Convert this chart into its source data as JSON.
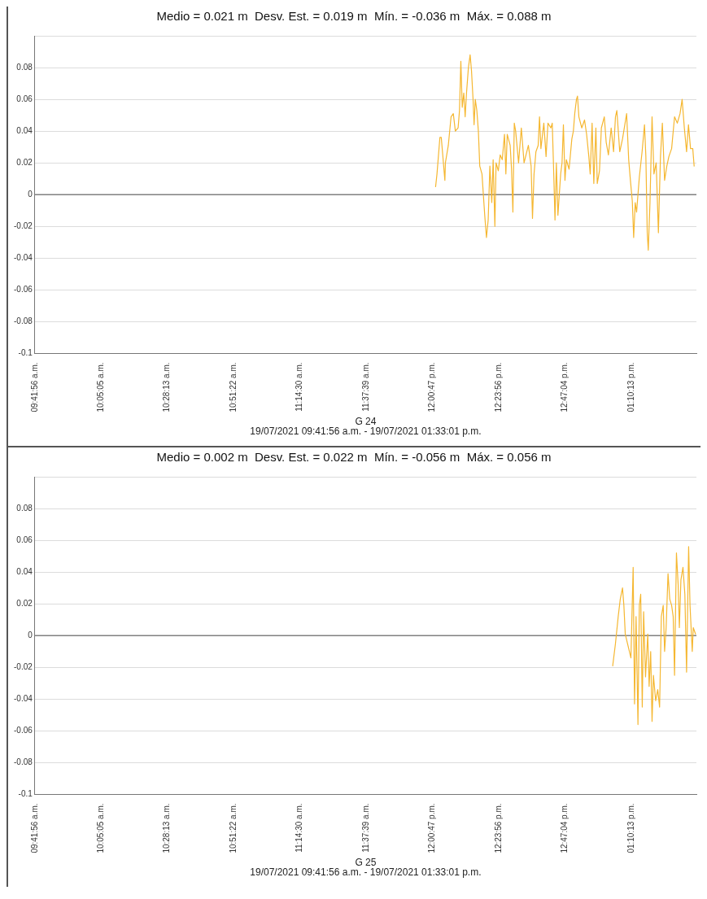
{
  "chart_data": [
    {
      "type": "line",
      "title": "Medio = 0.021 m  Desv. Est. = 0.019 m  Mín. = -0.036 m  Máx. = 0.088 m",
      "xlabel": "G 24",
      "annotations": [
        "19/07/2021 09:41:56 a.m. - 19/07/2021 01:33:01 p.m."
      ],
      "xlim": [
        9.6989,
        13.5503
      ],
      "xticks": [
        {
          "value": 9.6989,
          "label": "09:41:56 a.m."
        },
        {
          "value": 10.0847,
          "label": "10:05:05 a.m."
        },
        {
          "value": 10.4703,
          "label": "10:28:13 a.m."
        },
        {
          "value": 10.8561,
          "label": "10:51:22 a.m."
        },
        {
          "value": 11.2417,
          "label": "11:14:30 a.m."
        },
        {
          "value": 11.6275,
          "label": "11:37:39 a.m."
        },
        {
          "value": 12.0131,
          "label": "12:00:47 p.m."
        },
        {
          "value": 12.3989,
          "label": "12:23:56 p.m."
        },
        {
          "value": 12.7844,
          "label": "12:47:04 p.m."
        },
        {
          "value": 13.1703,
          "label": "01:10:13 p.m."
        }
      ],
      "ylim": [
        -0.1,
        0.1
      ],
      "yticks": [
        -0.1,
        -0.08,
        -0.06,
        -0.04,
        -0.02,
        0,
        0.02,
        0.04,
        0.06,
        0.08,
        {
          "value": 0.1,
          "label": null
        }
      ],
      "grid": "y",
      "legend": false,
      "line_style": "solid",
      "ref_lines": [
        {
          "axis": "y",
          "value": 0,
          "label": null,
          "color": "#808080"
        }
      ],
      "series": [
        {
          "color": "#f5b731",
          "x": [
            12.032,
            12.04,
            12.057,
            12.065,
            12.086,
            12.089,
            12.106,
            12.122,
            12.135,
            12.147,
            12.163,
            12.171,
            12.179,
            12.187,
            12.196,
            12.204,
            12.212,
            12.223,
            12.233,
            12.241,
            12.25,
            12.256,
            12.263,
            12.272,
            12.281,
            12.289,
            12.302,
            12.318,
            12.328,
            12.338,
            12.348,
            12.359,
            12.367,
            12.377,
            12.384,
            12.397,
            12.408,
            12.42,
            12.433,
            12.441,
            12.449,
            12.466,
            12.474,
            12.482,
            12.49,
            12.498,
            12.515,
            12.531,
            12.547,
            12.572,
            12.588,
            12.596,
            12.605,
            12.616,
            12.629,
            12.637,
            12.645,
            12.662,
            12.675,
            12.686,
            12.703,
            12.711,
            12.719,
            12.727,
            12.735,
            12.744,
            12.76,
            12.768,
            12.776,
            12.785,
            12.793,
            12.809,
            12.825,
            12.834,
            12.842,
            12.852,
            12.858,
            12.866,
            12.883,
            12.899,
            12.911,
            12.924,
            12.932,
            12.943,
            12.953,
            12.965,
            12.973,
            12.986,
            12.997,
            13.014,
            13.025,
            13.038,
            13.054,
            13.068,
            13.079,
            13.087,
            13.104,
            13.12,
            13.144,
            13.156,
            13.166,
            13.177,
            13.185,
            13.194,
            13.202,
            13.218,
            13.234,
            13.248,
            13.256,
            13.264,
            13.27,
            13.28,
            13.292,
            13.303,
            13.316,
            13.329,
            13.341,
            13.352,
            13.365,
            13.378,
            13.39,
            13.406,
            13.423,
            13.439,
            13.455,
            13.467,
            13.48,
            13.493,
            13.504,
            13.516,
            13.529,
            13.537
          ],
          "values": [
            0.005,
            0.013,
            0.036,
            0.036,
            0.009,
            0.02,
            0.031,
            0.049,
            0.051,
            0.04,
            0.042,
            0.053,
            0.084,
            0.055,
            0.064,
            0.049,
            0.064,
            0.08,
            0.088,
            0.078,
            0.06,
            0.044,
            0.06,
            0.053,
            0.04,
            0.018,
            0.013,
            -0.013,
            -0.027,
            -0.016,
            0.018,
            -0.005,
            0.022,
            -0.02,
            0.02,
            0.015,
            0.025,
            0.022,
            0.038,
            0.013,
            0.038,
            0.031,
            0.016,
            -0.011,
            0.045,
            0.04,
            0.02,
            0.042,
            0.02,
            0.031,
            0.018,
            -0.015,
            0.013,
            0.027,
            0.031,
            0.049,
            0.029,
            0.045,
            0.024,
            0.045,
            0.042,
            0.045,
            0.016,
            -0.016,
            0.02,
            -0.013,
            0.013,
            0.02,
            0.044,
            0.009,
            0.022,
            0.016,
            0.035,
            0.04,
            0.051,
            0.06,
            0.062,
            0.049,
            0.042,
            0.047,
            0.038,
            0.024,
            0.013,
            0.045,
            0.007,
            0.042,
            0.007,
            0.015,
            0.042,
            0.049,
            0.033,
            0.025,
            0.042,
            0.027,
            0.049,
            0.053,
            0.027,
            0.035,
            0.051,
            0.022,
            0.009,
            -0.004,
            -0.027,
            -0.005,
            -0.011,
            0.011,
            0.027,
            0.044,
            0.024,
            -0.024,
            -0.035,
            -0.005,
            0.049,
            0.013,
            0.02,
            -0.024,
            0.024,
            0.045,
            0.009,
            0.018,
            0.024,
            0.029,
            0.049,
            0.045,
            0.051,
            0.06,
            0.042,
            0.027,
            0.044,
            0.029,
            0.029,
            0.018
          ]
        }
      ]
    },
    {
      "type": "line",
      "title": "Medio = 0.002 m  Desv. Est. = 0.022 m  Mín. = -0.056 m  Máx. = 0.056 m",
      "xlabel": "G 25",
      "annotations": [
        "19/07/2021 09:41:56 a.m. - 19/07/2021 01:33:01 p.m."
      ],
      "xlim": [
        9.6989,
        13.5503
      ],
      "xticks": [
        {
          "value": 9.6989,
          "label": "09:41:56 a.m."
        },
        {
          "value": 10.0847,
          "label": "10:05:05 a.m."
        },
        {
          "value": 10.4703,
          "label": "10:28:13 a.m."
        },
        {
          "value": 10.8561,
          "label": "10:51:22 a.m."
        },
        {
          "value": 11.2417,
          "label": "11:14:30 a.m."
        },
        {
          "value": 11.6275,
          "label": "11:37:39 a.m."
        },
        {
          "value": 12.0131,
          "label": "12:00:47 p.m."
        },
        {
          "value": 12.3989,
          "label": "12:23:56 p.m."
        },
        {
          "value": 12.7844,
          "label": "12:47:04 p.m."
        },
        {
          "value": 13.1703,
          "label": "01:10:13 p.m."
        }
      ],
      "ylim": [
        -0.1,
        0.1
      ],
      "yticks": [
        -0.1,
        -0.08,
        -0.06,
        -0.04,
        -0.02,
        0,
        0.02,
        0.04,
        0.06,
        0.08,
        {
          "value": 0.1,
          "label": null
        }
      ],
      "grid": "y",
      "legend": false,
      "line_style": "solid",
      "ref_lines": [
        {
          "axis": "y",
          "value": 0,
          "label": null,
          "color": "#808080"
        }
      ],
      "series": [
        {
          "color": "#f5b731",
          "x": [
            13.063,
            13.079,
            13.095,
            13.107,
            13.12,
            13.128,
            13.136,
            13.169,
            13.182,
            13.19,
            13.199,
            13.21,
            13.218,
            13.226,
            13.235,
            13.243,
            13.254,
            13.267,
            13.275,
            13.284,
            13.292,
            13.3,
            13.313,
            13.325,
            13.336,
            13.346,
            13.357,
            13.365,
            13.374,
            13.385,
            13.395,
            13.406,
            13.415,
            13.423,
            13.434,
            13.444,
            13.451,
            13.46,
            13.472,
            13.483,
            13.493,
            13.505,
            13.513,
            13.526,
            13.532,
            13.545
          ],
          "values": [
            -0.019,
            -0.005,
            0.012,
            0.023,
            0.03,
            0.019,
            0.001,
            -0.014,
            0.043,
            -0.043,
            0.012,
            -0.056,
            0.019,
            0.026,
            -0.045,
            0.015,
            -0.026,
            0.001,
            -0.032,
            -0.01,
            -0.054,
            -0.025,
            -0.041,
            -0.034,
            -0.045,
            0.012,
            0.019,
            -0.01,
            0.005,
            0.039,
            0.023,
            0.019,
            0.012,
            -0.025,
            0.052,
            0.032,
            0.005,
            0.035,
            0.043,
            0.026,
            -0.023,
            0.056,
            0.019,
            -0.01,
            0.005,
            0.001
          ]
        }
      ]
    }
  ]
}
